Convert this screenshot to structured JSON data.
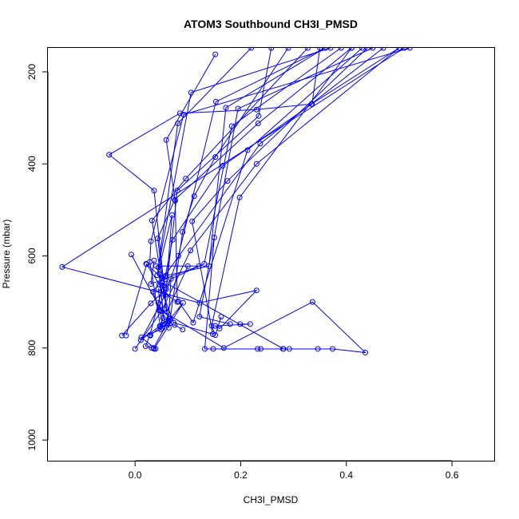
{
  "chart_data": {
    "type": "line",
    "title": "ATOM3 Southbound CH3I_PMSD",
    "xlabel": "CH3I_PMSD",
    "ylabel": "Pressure (mbar)",
    "xlim": [
      -0.165,
      0.68
    ],
    "ylim": [
      1045,
      148
    ],
    "y_reversed": true,
    "xticks": [
      "0.0",
      "0.2",
      "0.4",
      "0.6"
    ],
    "xtick_values": [
      0,
      0.2,
      0.4,
      0.6
    ],
    "yticks": [
      "200",
      "400",
      "600",
      "800",
      "1000"
    ],
    "ytick_values": [
      200,
      400,
      600,
      800,
      1000
    ],
    "grid": false,
    "legend": "none",
    "line_color": "#0000ff",
    "marker": "open-circle",
    "profiles": [
      {
        "x": [
          0.152,
          0.059,
          0.076,
          0.08,
          0.044,
          0.052,
          0.091,
          0.036
        ],
        "y": [
          162,
          348,
          480,
          700,
          672,
          757,
          702,
          802
        ]
      },
      {
        "x": [
          0.327,
          0.096,
          0.032,
          0.063,
          0.049,
          0.012,
          0.039
        ],
        "y": [
          148,
          432,
          523,
          740,
          760,
          777,
          802
        ]
      },
      {
        "x": [
          0.36,
          0.153,
          0.082,
          0.057,
          0.011,
          0.064,
          0.029
        ],
        "y": [
          148,
          265,
          600,
          685,
          783,
          737,
          773
        ]
      },
      {
        "x": [
          0.44,
          0.175,
          0.108,
          0.147,
          0.073,
          0.046,
          0.022,
          -0.017
        ],
        "y": [
          148,
          437,
          525,
          770,
          745,
          662,
          618,
          773
        ]
      },
      {
        "x": [
          0.52,
          0.092,
          0.03,
          0.028,
          0.048
        ],
        "y": [
          148,
          293,
          568,
          613,
          754
        ]
      },
      {
        "x": [
          0.39,
          0.183,
          0.131,
          0.068,
          0.063,
          0.035
        ],
        "y": [
          148,
          318,
          617,
          650,
          742,
          800
        ]
      },
      {
        "x": [
          0.258,
          0.234,
          0.08,
          0.059,
          0.03,
          -0.025
        ],
        "y": [
          148,
          296,
          458,
          672,
          703,
          773
        ]
      },
      {
        "x": [
          0.29,
          0.152,
          0.112,
          0.09,
          0.064,
          0.054
        ],
        "y": [
          148,
          385,
          470,
          548,
          756,
          665
        ]
      },
      {
        "x": [
          0.41,
          0.233,
          0.075,
          0.043,
          0.052,
          0.021
        ],
        "y": [
          148,
          312,
          478,
          562,
          649,
          617
        ]
      },
      {
        "x": [
          0.36,
          0.172,
          0.14,
          0.058,
          0.028,
          0.02,
          0.031
        ],
        "y": [
          148,
          278,
          622,
          643,
          772,
          796,
          800
        ]
      },
      {
        "x": [
          0.22,
          0.081,
          0.042,
          0.07,
          0.056
        ],
        "y": [
          148,
          312,
          642,
          511,
          716
        ]
      },
      {
        "x": [
          0.43,
          0.213,
          0.11,
          0.082
        ],
        "y": [
          148,
          370,
          745,
          699
        ]
      },
      {
        "x": [
          0.47,
          0.237,
          0.034,
          0.045
        ],
        "y": [
          148,
          356,
          678,
          718
        ]
      },
      {
        "x": [
          0.5,
          0.23,
          0.105,
          0.05,
          0.0
        ],
        "y": [
          148,
          400,
          588,
          720,
          802
        ]
      },
      {
        "x": [
          0.35,
          0.335,
          0.166,
          0.071,
          0.057,
          0.044
        ],
        "y": [
          148,
          270,
          404,
          565,
          645,
          702
        ]
      },
      {
        "x": [
          0.41,
          0.198,
          0.145,
          0.152,
          0.163
        ],
        "y": [
          148,
          473,
          752,
          772,
          732
        ]
      },
      {
        "x": [
          0.45,
          0.195,
          0.122,
          0.18
        ],
        "y": [
          148,
          280,
          732,
          748
        ]
      },
      {
        "x": [
          0.37,
          0.106,
          0.044,
          0.056
        ],
        "y": [
          148,
          245,
          625,
          748
        ]
      },
      {
        "x": [
          0.51,
          -0.138,
          0.122,
          0.23,
          0.16,
          0.152,
          0.218,
          0.199
        ],
        "y": [
          148,
          624,
          702,
          675,
          758,
          752,
          748,
          748
        ]
      },
      {
        "x": [
          0.5,
          0.334,
          0.23,
          0.085,
          -0.049,
          0.036,
          0.06,
          0.1
        ],
        "y": [
          148,
          270,
          282,
          290,
          380,
          458,
          722,
          622
        ]
      },
      {
        "x": [
          0.04,
          0.121,
          0.03,
          0.036
        ],
        "y": [
          622,
          622,
          661,
          610
        ]
      },
      {
        "x": [
          0.06,
          0.281,
          0.292,
          0.238,
          0.346,
          0.374,
          0.436,
          0.336,
          0.168,
          0.049,
          -0.007
        ],
        "y": [
          660,
          802,
          802,
          802,
          802,
          802,
          810,
          700,
          800,
          718,
          597
        ]
      },
      {
        "x": [
          0.15,
          0.132,
          0.148,
          0.232,
          0.28
        ],
        "y": [
          560,
          802,
          802,
          802,
          802
        ]
      },
      {
        "x": [
          0.09,
          0.075,
          0.047,
          0.053,
          0.047
        ],
        "y": [
          760,
          750,
          752,
          735,
          640
        ]
      }
    ]
  }
}
